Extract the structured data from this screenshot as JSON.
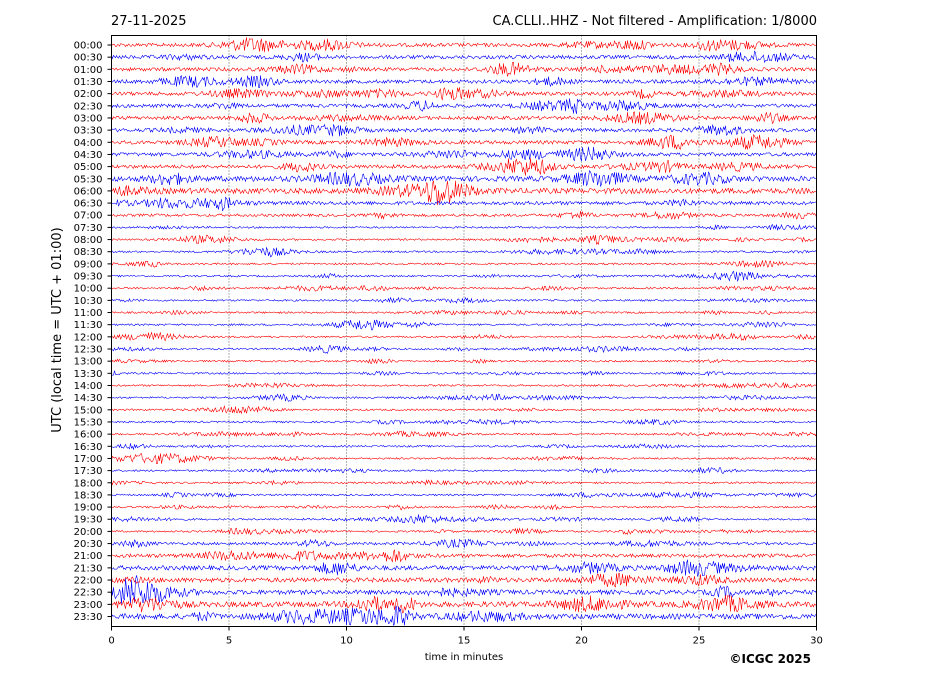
{
  "header": {
    "date": "27-11-2025",
    "title": "CA.CLLI..HHZ - Not filtered - Amplification: 1/8000"
  },
  "credit": "©ICGC 2025",
  "chart_data": {
    "type": "line",
    "title": "CA.CLLI..HHZ - Not filtered - Amplification: 1/8000",
    "xlabel": "time in minutes",
    "ylabel": "UTC (local time = UTC + 01:00)",
    "xlim": [
      0,
      30
    ],
    "x_ticks": [
      0,
      5,
      10,
      15,
      20,
      25,
      30
    ],
    "x_gridlines": [
      5,
      10,
      15,
      20,
      25
    ],
    "grid": "vertical-dotted",
    "colors": {
      "even_rows": "#ff0000",
      "odd_rows": "#0000ff",
      "axes": "#000000"
    },
    "rows": [
      {
        "label": "00:00",
        "amplitude": 2
      },
      {
        "label": "00:30",
        "amplitude": 2
      },
      {
        "label": "01:00",
        "amplitude": 2
      },
      {
        "label": "01:30",
        "amplitude": 2
      },
      {
        "label": "02:00",
        "amplitude": 2
      },
      {
        "label": "02:30",
        "amplitude": 2
      },
      {
        "label": "03:00",
        "amplitude": 2
      },
      {
        "label": "03:30",
        "amplitude": 2
      },
      {
        "label": "04:00",
        "amplitude": 2
      },
      {
        "label": "04:30",
        "amplitude": 2
      },
      {
        "label": "05:00",
        "amplitude": 2
      },
      {
        "label": "05:30",
        "amplitude": 3
      },
      {
        "label": "06:00",
        "amplitude": 3
      },
      {
        "label": "06:30",
        "amplitude": 2
      },
      {
        "label": "07:00",
        "amplitude": 1.5
      },
      {
        "label": "07:30",
        "amplitude": 1
      },
      {
        "label": "08:00",
        "amplitude": 1
      },
      {
        "label": "08:30",
        "amplitude": 1
      },
      {
        "label": "09:00",
        "amplitude": 1
      },
      {
        "label": "09:30",
        "amplitude": 1
      },
      {
        "label": "10:00",
        "amplitude": 1
      },
      {
        "label": "10:30",
        "amplitude": 1
      },
      {
        "label": "11:00",
        "amplitude": 1
      },
      {
        "label": "11:30",
        "amplitude": 1
      },
      {
        "label": "12:00",
        "amplitude": 1
      },
      {
        "label": "12:30",
        "amplitude": 1
      },
      {
        "label": "13:00",
        "amplitude": 1
      },
      {
        "label": "13:30",
        "amplitude": 1
      },
      {
        "label": "14:00",
        "amplitude": 1
      },
      {
        "label": "14:30",
        "amplitude": 1
      },
      {
        "label": "15:00",
        "amplitude": 1
      },
      {
        "label": "15:30",
        "amplitude": 1
      },
      {
        "label": "16:00",
        "amplitude": 1
      },
      {
        "label": "16:30",
        "amplitude": 1
      },
      {
        "label": "17:00",
        "amplitude": 1
      },
      {
        "label": "17:30",
        "amplitude": 1
      },
      {
        "label": "18:00",
        "amplitude": 1
      },
      {
        "label": "18:30",
        "amplitude": 1
      },
      {
        "label": "19:00",
        "amplitude": 1
      },
      {
        "label": "19:30",
        "amplitude": 1
      },
      {
        "label": "20:00",
        "amplitude": 1
      },
      {
        "label": "20:30",
        "amplitude": 1.5
      },
      {
        "label": "21:00",
        "amplitude": 2
      },
      {
        "label": "21:30",
        "amplitude": 2.5
      },
      {
        "label": "22:00",
        "amplitude": 2.5
      },
      {
        "label": "22:30",
        "amplitude": 2.5
      },
      {
        "label": "23:00",
        "amplitude": 3
      },
      {
        "label": "23:30",
        "amplitude": 3
      }
    ]
  }
}
